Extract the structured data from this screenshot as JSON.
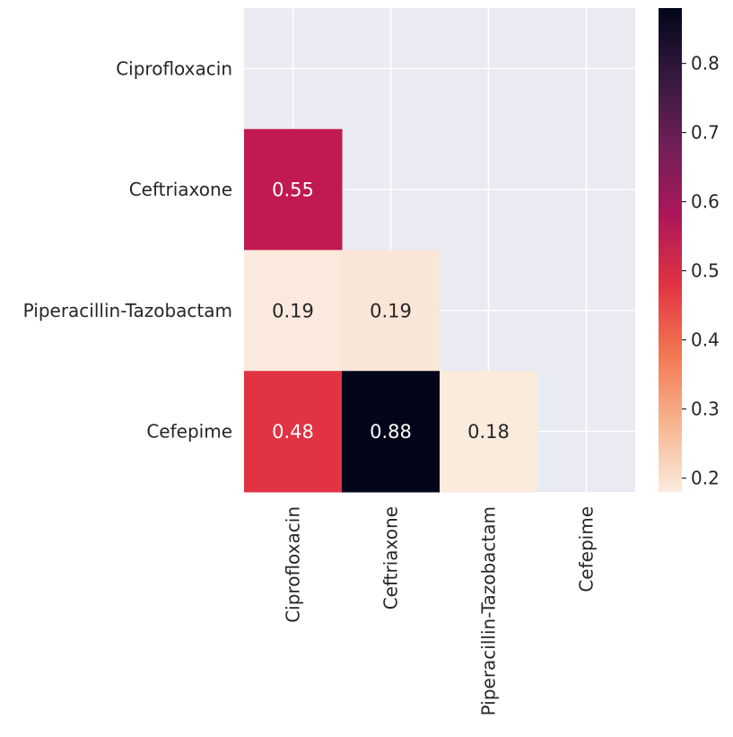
{
  "chart_data": {
    "type": "heatmap",
    "title": "",
    "xlabel": "",
    "ylabel": "",
    "mask": "upper-triangle-including-diagonal",
    "grid": true,
    "background_color": "#eaeaf2",
    "grid_color": "#ffffff",
    "colormap": "rocket_r",
    "x_labels": [
      "Ciprofloxacin",
      "Ceftriaxone",
      "Piperacillin-Tazobactam",
      "Cefepime"
    ],
    "y_labels": [
      "Ciprofloxacin",
      "Ceftriaxone",
      "Piperacillin-Tazobactam",
      "Cefepime"
    ],
    "cells": [
      {
        "row": 1,
        "col": 0,
        "value": 0.55,
        "label": "0.55",
        "color": "#c01a50",
        "text_color": "#ffffff"
      },
      {
        "row": 2,
        "col": 0,
        "value": 0.19,
        "label": "0.19",
        "color": "#fae9dc",
        "text_color": "#262626"
      },
      {
        "row": 2,
        "col": 1,
        "value": 0.19,
        "label": "0.19",
        "color": "#fae6d7",
        "text_color": "#262626"
      },
      {
        "row": 3,
        "col": 0,
        "value": 0.48,
        "label": "0.48",
        "color": "#e13342",
        "text_color": "#ffffff"
      },
      {
        "row": 3,
        "col": 1,
        "value": 0.88,
        "label": "0.88",
        "color": "#03051a",
        "text_color": "#ffffff"
      },
      {
        "row": 3,
        "col": 2,
        "value": 0.18,
        "label": "0.18",
        "color": "#faebdd",
        "text_color": "#262626"
      }
    ],
    "colorbar": {
      "vmin": 0.18,
      "vmax": 0.88,
      "ticks": [
        0.2,
        0.3,
        0.4,
        0.5,
        0.6,
        0.7,
        0.8
      ],
      "tick_labels": [
        "0.2",
        "0.3",
        "0.4",
        "0.5",
        "0.6",
        "0.7",
        "0.8"
      ],
      "stops": [
        "#faebdd",
        "#f6b48e",
        "#f37651",
        "#e13342",
        "#ad1759",
        "#701f57",
        "#35193e",
        "#03051a"
      ]
    }
  }
}
